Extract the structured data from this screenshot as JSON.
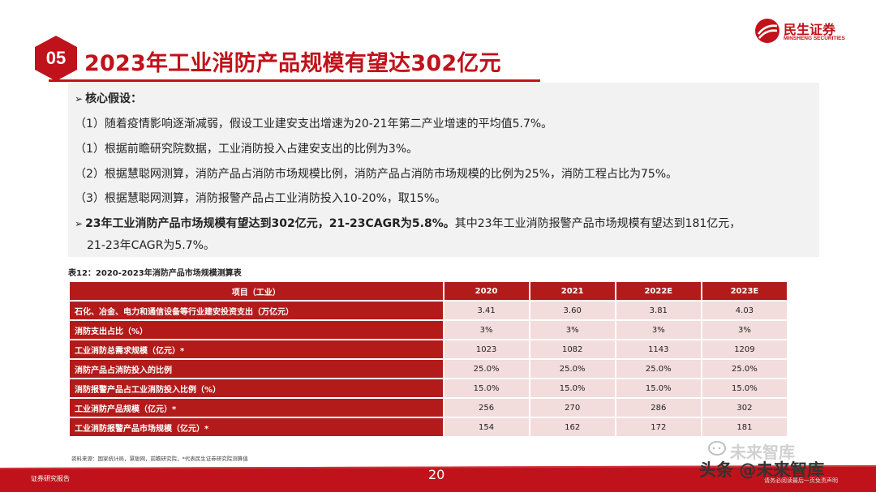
{
  "header": {
    "section_number": "05",
    "title": "2023年工业消防产品规模有望达302亿元",
    "logo_cn": "民生证券",
    "logo_en": "MINSHENG SECURITIES"
  },
  "assumptions": {
    "heading": "核心假设：",
    "items": [
      "（1）随着疫情影响逐渐减弱，假设工业建安支出增速为20-21年第二产业增速的平均值5.7%。",
      "（1）根据前瞻研究院数据，工业消防投入占建安支出的比例为3%。",
      "（2）根据慧聪网测算，消防产品占消防市场规模比例，消防产品占消防市场规模的比例为25%，消防工程占比为75%。",
      "（3）根据慧聪网测算，消防报警产品占工业消防投入10-20%，取15%。"
    ],
    "conclusion_bold": "23年工业消防产品市场规模有望达到302亿元，21-23CAGR为5.8%。",
    "conclusion_rest": "其中23年工业消防报警产品市场规模有望达到181亿元，",
    "conclusion_line2": "21-23年CAGR为5.7%。"
  },
  "table": {
    "caption": "表12：2020-2023年消防产品市场规模测算表",
    "headers": [
      "项目（工业）",
      "2020",
      "2021",
      "2022E",
      "2023E"
    ],
    "rows": [
      {
        "label": "石化、冶金、电力和通信设备等行业建安投资支出（万亿元）",
        "values": [
          "3.41",
          "3.60",
          "3.81",
          "4.03"
        ]
      },
      {
        "label": "消防支出占比（%）",
        "values": [
          "3%",
          "3%",
          "3%",
          "3%"
        ]
      },
      {
        "label": "工业消防总需求规模（亿元）*",
        "values": [
          "1023",
          "1082",
          "1143",
          "1209"
        ]
      },
      {
        "label": "消防产品占消防投入的比例",
        "values": [
          "25.0%",
          "25.0%",
          "25.0%",
          "25.0%"
        ]
      },
      {
        "label": "消防报警产品占工业消防投入比例（%）",
        "values": [
          "15.0%",
          "15.0%",
          "15.0%",
          "15.0%"
        ]
      },
      {
        "label": "工业消防产品规模（亿元）*",
        "values": [
          "256",
          "270",
          "286",
          "302"
        ]
      },
      {
        "label": "工业消防报警产品市场规模（亿元）*",
        "values": [
          "154",
          "162",
          "172",
          "181"
        ]
      }
    ],
    "source": "资料来源：国家统计局，慧聪网，前瞻研究院，*代表民生证券研究院测算值"
  },
  "footer": {
    "label": "证券研究报告",
    "page": "20"
  },
  "watermark": {
    "top": "未来智库",
    "main": "头条 @未来智库",
    "small": "请务必阅读最后一页免责声明"
  },
  "colors": {
    "brand_red": "#c0121a",
    "table_header": "#b31b1b",
    "table_cell": "#f3dcdc",
    "panel_bg": "#f2f2f2"
  }
}
